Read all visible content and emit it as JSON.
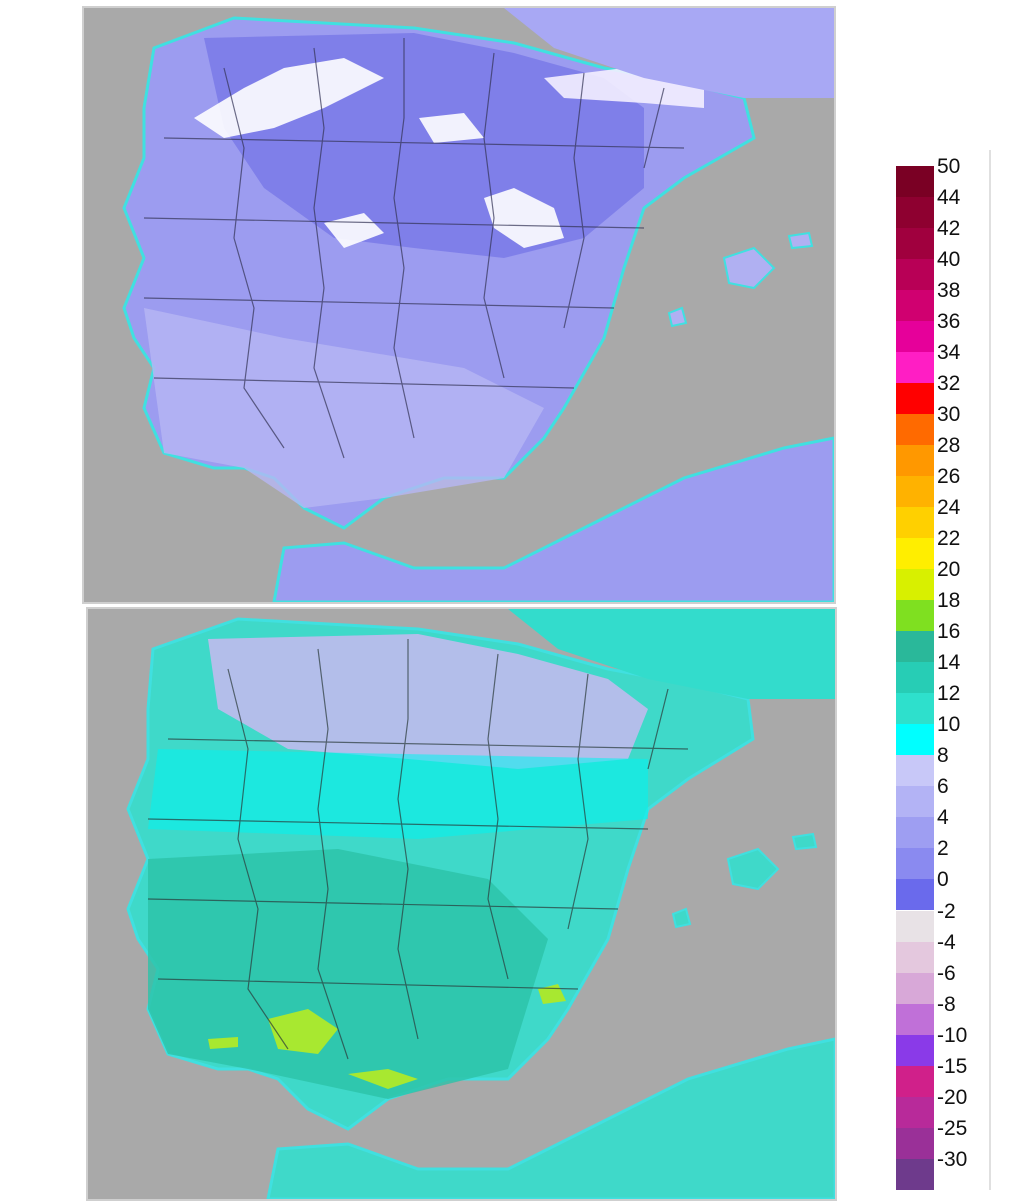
{
  "maps": [
    {
      "id": "map-top",
      "fill_colors": {
        "land": "#9c9cf0",
        "land_dark": "#7b7ae8",
        "snow": "#ffffff",
        "coast": "#3fe0e0",
        "sea": "#a9a9a9"
      }
    },
    {
      "id": "map-bottom",
      "fill_colors": {
        "land": "#3fd9c9",
        "land_dark": "#2cc2a8",
        "cool": "#c8b8f0",
        "warm": "#a8e830",
        "sea": "#a9a9a9"
      }
    }
  ],
  "legend": {
    "positive": [
      {
        "label": "50",
        "color": "#7a0024"
      },
      {
        "label": "44",
        "color": "#8e0030"
      },
      {
        "label": "42",
        "color": "#a0003e"
      },
      {
        "label": "40",
        "color": "#b80056"
      },
      {
        "label": "38",
        "color": "#d00070"
      },
      {
        "label": "36",
        "color": "#e6009a"
      },
      {
        "label": "34",
        "color": "#ff1ec4"
      },
      {
        "label": "32",
        "color": "#ff0000"
      },
      {
        "label": "30",
        "color": "#ff6a00"
      },
      {
        "label": "28",
        "color": "#ff9800"
      },
      {
        "label": "26",
        "color": "#ffb200"
      },
      {
        "label": "24",
        "color": "#ffd000"
      },
      {
        "label": "22",
        "color": "#ffee00"
      },
      {
        "label": "20",
        "color": "#d8f000"
      },
      {
        "label": "18",
        "color": "#7fe020"
      },
      {
        "label": "16",
        "color": "#2ab89a"
      },
      {
        "label": "14",
        "color": "#27cdb5"
      },
      {
        "label": "12",
        "color": "#2ee0cc"
      },
      {
        "label": "10",
        "color": "#00ffff"
      },
      {
        "label": "8",
        "color": "#c8c8f8"
      },
      {
        "label": "6",
        "color": "#b3b3f5"
      },
      {
        "label": "4",
        "color": "#9e9ef2"
      },
      {
        "label": "2",
        "color": "#8a8af0"
      },
      {
        "label": "0",
        "color": "#6a6aec"
      }
    ],
    "negative": [
      {
        "label": "-2",
        "color": "#e8e2e6"
      },
      {
        "label": "-4",
        "color": "#e4c8de"
      },
      {
        "label": "-6",
        "color": "#d8a8d8"
      },
      {
        "label": "-8",
        "color": "#c070d8"
      },
      {
        "label": "-10",
        "color": "#8a3ae8"
      },
      {
        "label": "-15",
        "color": "#d0208a"
      },
      {
        "label": "-20",
        "color": "#b82a9a"
      },
      {
        "label": "-25",
        "color": "#9a3098"
      },
      {
        "label": "-30",
        "color": "#6e3a8c"
      }
    ]
  }
}
